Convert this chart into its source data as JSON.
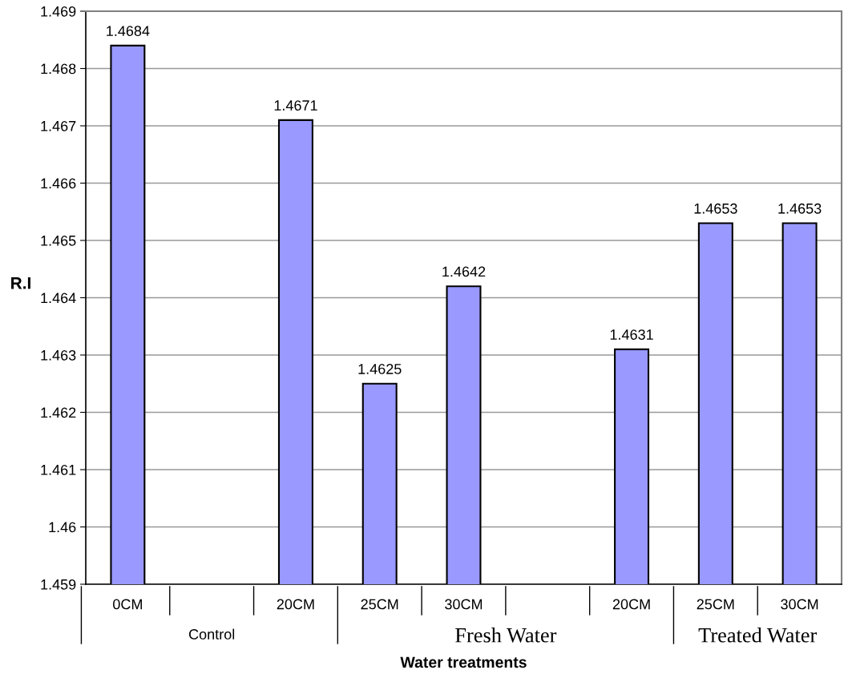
{
  "chart_data": {
    "type": "bar",
    "xlabel": "Water treatments",
    "ylabel": "R.I",
    "categories": [
      "0CM",
      null,
      "20CM",
      "25CM",
      "30CM",
      null,
      "20CM",
      "25CM",
      "30CM"
    ],
    "values": [
      1.4684,
      null,
      1.4671,
      1.4625,
      1.4642,
      null,
      1.4631,
      1.4653,
      1.4653
    ],
    "color": "#9999ff",
    "ylim": [
      1.459,
      1.469
    ],
    "yticks": [
      1.459,
      1.46,
      1.461,
      1.462,
      1.463,
      1.464,
      1.465,
      1.466,
      1.467,
      1.468,
      1.469
    ],
    "grid": "y",
    "data_labels": true,
    "annotations": [
      "Control",
      "Fresh Water",
      "Treated Water"
    ]
  }
}
